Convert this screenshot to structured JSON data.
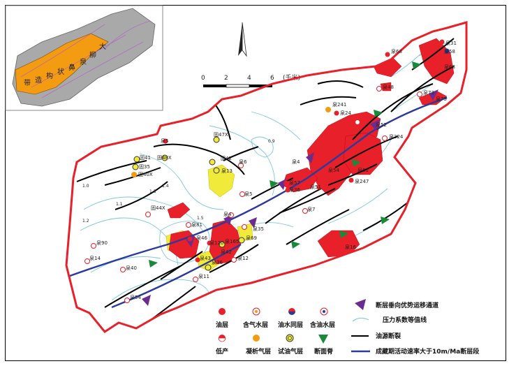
{
  "inset": {
    "labels": [
      "大",
      "柳",
      "泉",
      "鼻",
      "状",
      "构",
      "造",
      "带"
    ],
    "colors": {
      "belt": "#f39c12",
      "region": "#a9a9a9"
    }
  },
  "scale": {
    "ticks": [
      "0",
      "2",
      "4",
      "6"
    ],
    "unit": "(千米)"
  },
  "north_arrow": {
    "icon": "north-arrow-icon"
  },
  "wells": [
    "泉68",
    "泉31",
    "泉58",
    "泉68",
    "泉48",
    "泉73",
    "泉75",
    "泉241",
    "泉24",
    "泉52",
    "泉324",
    "泉5",
    "固47X",
    "泉6",
    "泉4",
    "固42",
    "泉13",
    "泉57",
    "泉36",
    "泉51",
    "泉54",
    "泉247",
    "泉61",
    "泉5",
    "固41",
    "固48X",
    "固35",
    "固40X",
    "固44X",
    "泉4",
    "泉81",
    "泉35",
    "泉46",
    "泉120",
    "泉69",
    "泉165",
    "泉42",
    "泉12",
    "泉90",
    "泉14",
    "泉43",
    "泉36",
    "泉40",
    "泉11",
    "泉54",
    "泉16",
    "泉7"
  ],
  "contours": [
    "1.0",
    "1.1",
    "1.2",
    "1.3",
    "1.4",
    "1.5",
    "0.9"
  ],
  "legend": {
    "items": [
      {
        "icon": "oil-layer-icon",
        "label": "油层"
      },
      {
        "icon": "gas-bearing-water-icon",
        "label": "含气水层"
      },
      {
        "icon": "oil-water-layer-icon",
        "label": "油水同层"
      },
      {
        "icon": "oil-bearing-water-icon",
        "label": "含油水层"
      },
      {
        "icon": "low-production-icon",
        "label": "低产"
      },
      {
        "icon": "condensate-gas-icon",
        "label": "凝析气层"
      },
      {
        "icon": "test-oil-gas-icon",
        "label": "试油气层"
      },
      {
        "icon": "fault-ridge-icon",
        "label": "断面脊"
      }
    ],
    "lines": [
      {
        "icon": "migration-pathway-icon",
        "label": "断层垂向优势运移通道"
      },
      {
        "icon": "pressure-contour-icon",
        "label": "压力系数等值线"
      },
      {
        "icon": "source-fault-icon",
        "label": "油源断裂"
      },
      {
        "icon": "active-fault-icon",
        "label": "成藏期活动速率大于10m/Ma断层段"
      }
    ]
  },
  "colors": {
    "oil": "#e8202a",
    "gas": "#f0ea3a",
    "contour": "#7ec8e3",
    "fault": "#000000",
    "active_fault": "#2b3a9c",
    "pathway": "#6b2c91",
    "ridge": "#1a8a3a",
    "condensate": "#f39c12"
  }
}
